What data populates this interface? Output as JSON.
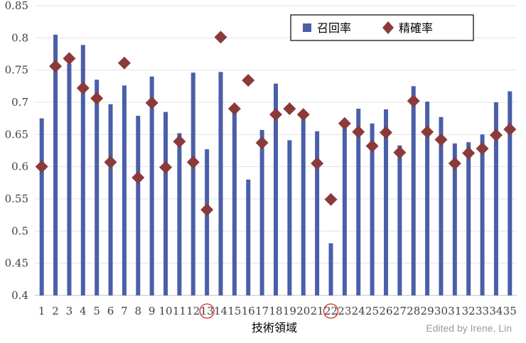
{
  "chart_data": {
    "type": "bar",
    "xlabel": "技術領域",
    "ylabel": "",
    "ylim": [
      0.4,
      0.85
    ],
    "yticks": [
      "0.4",
      "0.45",
      "0.5",
      "0.55",
      "0.6",
      "0.65",
      "0.7",
      "0.75",
      "0.8",
      "0.85"
    ],
    "grid": true,
    "legend_position": "top-right",
    "categories": [
      "1",
      "2",
      "3",
      "4",
      "5",
      "6",
      "7",
      "8",
      "9",
      "10",
      "11",
      "12",
      "13",
      "14",
      "15",
      "16",
      "17",
      "18",
      "19",
      "20",
      "21",
      "22",
      "23",
      "24",
      "25",
      "26",
      "27",
      "28",
      "29",
      "30",
      "31",
      "32",
      "33",
      "34",
      "35"
    ],
    "highlighted_categories": [
      "13",
      "22"
    ],
    "series": [
      {
        "name": "召回率",
        "marker": "bar",
        "color": "#4a5fa8",
        "values": [
          0.675,
          0.805,
          0.76,
          0.789,
          0.735,
          0.697,
          0.726,
          0.679,
          0.74,
          0.685,
          0.652,
          0.746,
          0.627,
          0.747,
          0.69,
          0.58,
          0.657,
          0.729,
          0.641,
          0.676,
          0.655,
          0.481,
          0.66,
          0.69,
          0.667,
          0.689,
          0.633,
          0.725,
          0.701,
          0.677,
          0.636,
          0.638,
          0.65,
          0.7,
          0.717
        ]
      },
      {
        "name": "精確率",
        "marker": "diamond",
        "color": "#8b3a3a",
        "values": [
          0.6,
          0.756,
          0.768,
          0.722,
          0.706,
          0.607,
          0.761,
          0.583,
          0.699,
          0.599,
          0.639,
          0.607,
          0.533,
          0.801,
          0.69,
          0.734,
          0.637,
          0.681,
          0.69,
          0.681,
          0.605,
          0.549,
          0.667,
          0.654,
          0.632,
          0.653,
          0.622,
          0.702,
          0.654,
          0.642,
          0.605,
          0.621,
          0.628,
          0.649,
          0.658
        ]
      }
    ]
  },
  "credit": "Edited by Irene, Lin"
}
